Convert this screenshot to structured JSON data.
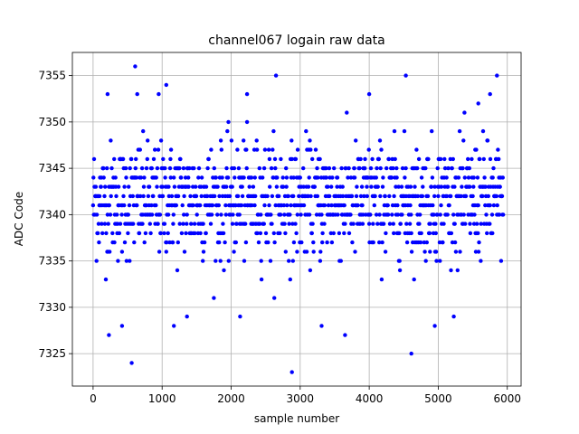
{
  "chart_data": {
    "type": "scatter",
    "title": "channel067 logain raw data",
    "xlabel": "sample number",
    "ylabel": "ADC Code",
    "xlim": [
      -300,
      6200
    ],
    "ylim": [
      7321.5,
      7357.5
    ],
    "x_ticks": [
      0,
      1000,
      2000,
      3000,
      4000,
      5000,
      6000
    ],
    "y_ticks": [
      7325,
      7330,
      7335,
      7340,
      7345,
      7350,
      7355
    ],
    "grid": true,
    "marker_color": "#0000ff",
    "series": [
      {
        "n_samples": 5944,
        "x_range": [
          0,
          5943
        ],
        "value_range": [
          7323,
          7356
        ],
        "dense_band": [
          7336,
          7347
        ],
        "outliers": [
          {
            "x": 230,
            "y": 7327
          },
          {
            "x": 420,
            "y": 7328
          },
          {
            "x": 560,
            "y": 7324
          },
          {
            "x": 610,
            "y": 7356
          },
          {
            "x": 210,
            "y": 7353
          },
          {
            "x": 640,
            "y": 7353
          },
          {
            "x": 950,
            "y": 7353
          },
          {
            "x": 1060,
            "y": 7354
          },
          {
            "x": 1170,
            "y": 7328
          },
          {
            "x": 1360,
            "y": 7329
          },
          {
            "x": 2130,
            "y": 7329
          },
          {
            "x": 2230,
            "y": 7353
          },
          {
            "x": 2650,
            "y": 7355
          },
          {
            "x": 2880,
            "y": 7323
          },
          {
            "x": 3310,
            "y": 7328
          },
          {
            "x": 3650,
            "y": 7327
          },
          {
            "x": 4000,
            "y": 7353
          },
          {
            "x": 4530,
            "y": 7355
          },
          {
            "x": 4610,
            "y": 7325
          },
          {
            "x": 4950,
            "y": 7328
          },
          {
            "x": 5580,
            "y": 7352
          },
          {
            "x": 5750,
            "y": 7353
          },
          {
            "x": 5850,
            "y": 7355
          }
        ]
      }
    ]
  }
}
